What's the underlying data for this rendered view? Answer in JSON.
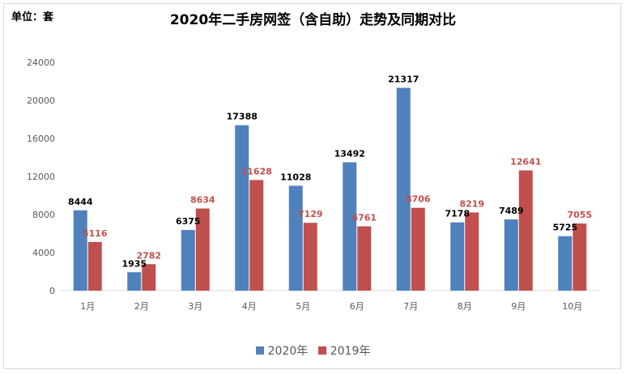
{
  "unit_label": "单位：套",
  "chart_data": {
    "type": "bar",
    "title": "2020年二手房网签（含自助）走势及同期对比",
    "categories": [
      "1月",
      "2月",
      "3月",
      "4月",
      "5月",
      "6月",
      "7月",
      "8月",
      "9月",
      "10月"
    ],
    "series": [
      {
        "name": "2020年",
        "color": "#4f81bd",
        "label_color": "#000000",
        "values": [
          8444,
          1935,
          6375,
          17388,
          11028,
          13492,
          21317,
          7178,
          7489,
          5725
        ]
      },
      {
        "name": "2019年",
        "color": "#c0504d",
        "label_color": "#c0504d",
        "values": [
          5116,
          2782,
          8634,
          11628,
          7129,
          6761,
          8706,
          8219,
          12641,
          7055
        ]
      }
    ],
    "ylim": [
      0,
      24000
    ],
    "yticks": [
      0,
      4000,
      8000,
      12000,
      16000,
      20000,
      24000
    ],
    "grid": false,
    "legend_position": "bottom-center",
    "data_labels": true
  }
}
